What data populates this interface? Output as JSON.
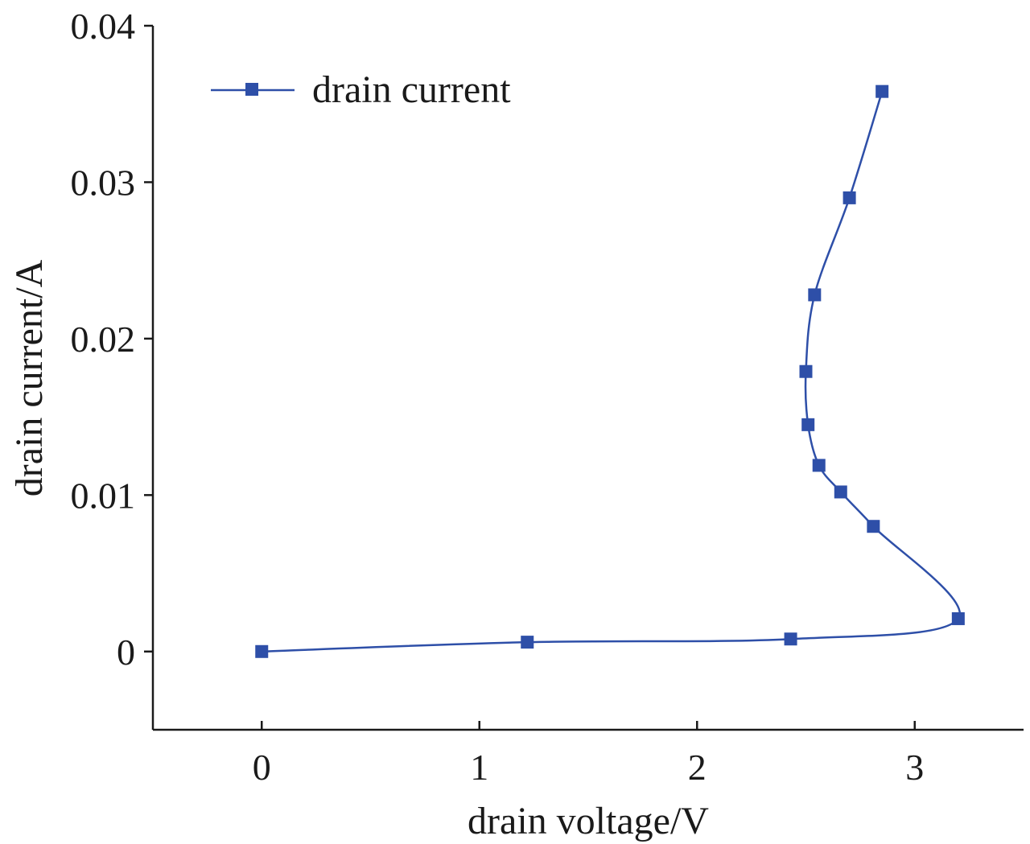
{
  "chart_data": {
    "type": "line",
    "title": "",
    "xlabel": "drain voltage/V",
    "ylabel": "drain current/A",
    "xlim": [
      -0.5,
      3.5
    ],
    "ylim": [
      -0.005,
      0.04
    ],
    "x_ticks": [
      0,
      1,
      2,
      3
    ],
    "x_tick_labels": [
      "0",
      "1",
      "2",
      "3"
    ],
    "y_ticks": [
      0,
      0.01,
      0.02,
      0.03,
      0.04
    ],
    "y_tick_labels": [
      "0",
      "0.01",
      "0.02",
      "0.03",
      "0.04"
    ],
    "grid": false,
    "legend_position": "top-left",
    "color": "#2e4fa8",
    "series": [
      {
        "name": "drain current",
        "marker": "square",
        "points": [
          {
            "x": 0.0,
            "y": 0.0
          },
          {
            "x": 1.22,
            "y": 0.0006
          },
          {
            "x": 2.43,
            "y": 0.0008
          },
          {
            "x": 3.2,
            "y": 0.0021
          },
          {
            "x": 2.81,
            "y": 0.008
          },
          {
            "x": 2.66,
            "y": 0.0102
          },
          {
            "x": 2.56,
            "y": 0.0119
          },
          {
            "x": 2.51,
            "y": 0.0145
          },
          {
            "x": 2.5,
            "y": 0.0179
          },
          {
            "x": 2.54,
            "y": 0.0228
          },
          {
            "x": 2.7,
            "y": 0.029
          },
          {
            "x": 2.85,
            "y": 0.0358
          }
        ]
      }
    ]
  }
}
